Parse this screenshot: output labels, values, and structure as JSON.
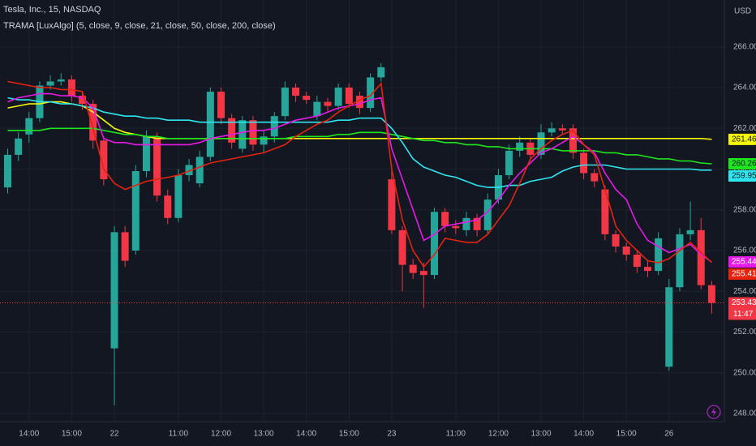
{
  "chart_data": {
    "type": "candlestick",
    "title": "Tesla, Inc., 15, NASDAQ",
    "indicator": "TRAMA [LuxAlgo] (5, close, 9, close, 21, close, 50, close, 200, close)",
    "currency": "USD",
    "countdown": "11:47",
    "up_color": "#26a69a",
    "down_color": "#f23645",
    "grid": true,
    "categories": [
      null,
      null,
      "14:00",
      null,
      null,
      null,
      "15:00",
      null,
      null,
      null,
      "22",
      null,
      null,
      null,
      null,
      null,
      "11:00",
      null,
      null,
      null,
      "12:00",
      null,
      null,
      null,
      "13:00",
      null,
      null,
      null,
      "14:00",
      null,
      null,
      null,
      "15:00",
      null,
      null,
      null,
      "23",
      null,
      null,
      null,
      null,
      null,
      "11:00",
      null,
      null,
      null,
      "12:00",
      null,
      null,
      null,
      "13:00",
      null,
      null,
      null,
      "14:00",
      null,
      null,
      null,
      "15:00",
      null,
      null,
      null,
      "26",
      null,
      null,
      null,
      null
    ],
    "open": [
      259.1,
      260.7,
      261.7,
      262.5,
      264.1,
      264.3,
      264.4,
      263.6,
      263.2,
      261.4,
      251.2,
      256.9,
      256.0,
      259.9,
      261.6,
      258.7,
      257.6,
      259.7,
      259.3,
      260.6,
      263.8,
      262.5,
      261.0,
      262.4,
      261.2,
      261.6,
      262.6,
      264.0,
      263.6,
      262.6,
      263.3,
      263.1,
      264.0,
      263.6,
      263.0,
      264.5,
      259.5,
      257.0,
      255.3,
      255.0,
      254.8,
      257.9,
      257.2,
      257.0,
      257.6,
      257.0,
      258.5,
      259.7,
      260.9,
      261.3,
      260.7,
      261.8,
      262.0,
      262.0,
      260.8,
      259.8,
      259.0,
      256.8,
      256.2,
      255.8,
      255.2,
      255.0,
      250.3,
      254.2,
      256.8,
      257.0,
      254.3
    ],
    "high": [
      261.0,
      261.8,
      262.8,
      264.3,
      264.6,
      264.7,
      264.6,
      263.8,
      263.4,
      261.6,
      257.2,
      257.2,
      260.2,
      261.9,
      261.8,
      259.0,
      260.0,
      260.5,
      260.9,
      264.0,
      264.0,
      262.7,
      262.6,
      262.6,
      261.9,
      262.8,
      264.3,
      264.2,
      263.8,
      263.6,
      263.5,
      264.2,
      264.2,
      263.8,
      264.7,
      265.2,
      260.2,
      257.2,
      255.6,
      255.4,
      258.1,
      258.1,
      257.5,
      257.9,
      257.8,
      258.8,
      260.0,
      261.2,
      261.6,
      261.5,
      262.2,
      262.3,
      262.2,
      262.2,
      261.0,
      260.0,
      259.2,
      257.0,
      256.4,
      256.0,
      255.5,
      256.9,
      254.6,
      257.1,
      258.4,
      257.6,
      254.5
    ],
    "low": [
      258.8,
      260.4,
      261.3,
      262.3,
      263.9,
      264.1,
      263.3,
      262.9,
      261.0,
      259.2,
      248.4,
      255.2,
      255.8,
      259.6,
      258.4,
      257.3,
      257.4,
      259.4,
      259.1,
      260.4,
      262.2,
      261.0,
      260.8,
      260.9,
      260.8,
      261.3,
      262.4,
      263.3,
      263.2,
      262.4,
      262.8,
      262.9,
      263.0,
      262.7,
      262.8,
      264.3,
      256.8,
      254.0,
      254.6,
      253.2,
      254.6,
      256.9,
      256.8,
      256.7,
      256.7,
      256.8,
      258.3,
      259.5,
      260.6,
      260.4,
      260.5,
      261.6,
      261.7,
      260.5,
      259.5,
      259.1,
      256.5,
      255.9,
      255.5,
      254.9,
      254.7,
      254.8,
      250.1,
      254.0,
      256.5,
      254.1,
      252.9
    ],
    "close": [
      260.7,
      261.5,
      262.5,
      264.1,
      264.3,
      264.4,
      263.6,
      263.2,
      261.4,
      259.5,
      256.9,
      255.5,
      259.9,
      261.6,
      258.7,
      257.6,
      259.7,
      260.2,
      260.6,
      263.8,
      262.5,
      261.3,
      262.4,
      261.2,
      261.6,
      262.6,
      264.0,
      263.6,
      263.4,
      263.3,
      263.1,
      264.0,
      263.2,
      263.0,
      264.5,
      265.0,
      257.0,
      255.3,
      254.9,
      254.8,
      257.9,
      257.2,
      257.1,
      257.6,
      257.0,
      258.5,
      259.7,
      260.9,
      261.3,
      260.7,
      261.8,
      262.0,
      261.9,
      260.8,
      259.8,
      259.4,
      256.8,
      256.2,
      255.8,
      255.2,
      255.0,
      256.6,
      254.2,
      256.8,
      257.0,
      254.3,
      253.43
    ],
    "series": [
      {
        "color": "#f5f50a",
        "values": [
          263.0,
          263.1,
          263.2,
          263.2,
          263.3,
          263.3,
          263.2,
          263.1,
          262.8,
          262.4,
          262.0,
          261.8,
          261.7,
          261.6,
          261.5,
          261.5,
          261.5,
          261.5,
          261.5,
          261.5,
          261.5,
          261.5,
          261.5,
          261.5,
          261.5,
          261.5,
          261.5,
          261.5,
          261.5,
          261.5,
          261.5,
          261.5,
          261.5,
          261.5,
          261.5,
          261.5,
          261.5,
          261.5,
          261.5,
          261.5,
          261.5,
          261.5,
          261.5,
          261.5,
          261.5,
          261.5,
          261.5,
          261.5,
          261.5,
          261.5,
          261.5,
          261.5,
          261.5,
          261.5,
          261.5,
          261.5,
          261.5,
          261.5,
          261.5,
          261.5,
          261.5,
          261.5,
          261.5,
          261.5,
          261.5,
          261.5,
          261.46
        ]
      },
      {
        "color": "#1ee61e",
        "values": [
          261.9,
          261.9,
          261.9,
          261.9,
          262.0,
          262.0,
          262.0,
          262.0,
          262.0,
          261.9,
          261.8,
          261.7,
          261.7,
          261.6,
          261.6,
          261.5,
          261.5,
          261.5,
          261.5,
          261.5,
          261.5,
          261.5,
          261.5,
          261.5,
          261.5,
          261.5,
          261.5,
          261.6,
          261.6,
          261.6,
          261.6,
          261.7,
          261.7,
          261.8,
          261.8,
          261.8,
          261.7,
          261.6,
          261.5,
          261.4,
          261.4,
          261.3,
          261.3,
          261.2,
          261.2,
          261.1,
          261.1,
          261.0,
          261.0,
          261.0,
          261.0,
          261.0,
          260.9,
          260.9,
          260.9,
          260.9,
          260.8,
          260.8,
          260.7,
          260.7,
          260.6,
          260.5,
          260.5,
          260.4,
          260.4,
          260.3,
          260.26
        ]
      },
      {
        "color": "#2ee6f0",
        "values": [
          263.5,
          263.4,
          263.4,
          263.3,
          263.3,
          263.2,
          263.2,
          263.1,
          263.0,
          262.8,
          262.7,
          262.6,
          262.6,
          262.5,
          262.5,
          262.4,
          262.4,
          262.4,
          262.3,
          262.3,
          262.3,
          262.3,
          262.3,
          262.3,
          262.3,
          262.3,
          262.3,
          262.3,
          262.3,
          262.3,
          262.3,
          262.4,
          262.4,
          262.5,
          262.5,
          262.5,
          262.0,
          261.3,
          260.5,
          260.1,
          259.9,
          259.7,
          259.6,
          259.4,
          259.2,
          259.1,
          259.1,
          259.2,
          259.2,
          259.4,
          259.5,
          259.6,
          259.9,
          260.1,
          260.2,
          260.2,
          260.2,
          260.1,
          260.0,
          260.0,
          260.0,
          260.0,
          260.0,
          260.0,
          260.0,
          259.95,
          259.95
        ]
      },
      {
        "color": "#e619e6",
        "values": [
          263.3,
          263.5,
          263.6,
          263.7,
          263.7,
          263.6,
          263.6,
          263.5,
          263.0,
          261.5,
          261.3,
          261.3,
          261.2,
          261.2,
          261.2,
          261.2,
          261.2,
          261.2,
          261.3,
          261.5,
          261.6,
          261.7,
          261.8,
          261.9,
          261.9,
          262.0,
          262.2,
          262.4,
          262.5,
          262.6,
          262.8,
          263.0,
          263.1,
          263.2,
          263.4,
          263.5,
          261.0,
          259.5,
          258.0,
          256.5,
          256.8,
          257.2,
          257.3,
          257.4,
          257.5,
          257.9,
          258.5,
          259.2,
          259.8,
          260.3,
          260.8,
          261.0,
          261.3,
          261.6,
          261.2,
          260.8,
          259.8,
          259.0,
          258.5,
          257.3,
          256.5,
          256.2,
          255.9,
          256.1,
          256.3,
          255.8,
          255.44
        ]
      },
      {
        "color": "#e6230f",
        "values": [
          264.3,
          264.2,
          264.1,
          264.0,
          264.0,
          263.9,
          263.9,
          263.8,
          262.0,
          260.0,
          259.3,
          259.0,
          259.2,
          259.4,
          259.5,
          259.6,
          259.7,
          259.9,
          260.1,
          260.3,
          260.4,
          260.5,
          260.6,
          260.7,
          260.8,
          261.0,
          261.2,
          261.6,
          261.9,
          262.2,
          262.4,
          262.8,
          263.1,
          263.4,
          263.6,
          264.2,
          260.0,
          257.5,
          256.0,
          255.2,
          255.8,
          256.6,
          256.5,
          256.4,
          256.4,
          256.8,
          257.5,
          258.2,
          259.3,
          260.5,
          261.0,
          261.4,
          261.7,
          261.9,
          261.2,
          260.7,
          259.0,
          257.2,
          256.5,
          256.0,
          255.5,
          255.4,
          255.6,
          256.0,
          256.4,
          255.9,
          255.41
        ]
      }
    ],
    "ylim": [
      247.6,
      268.3
    ],
    "yticks": [
      {
        "value": 248,
        "label": "248.00"
      },
      {
        "value": 250,
        "label": "250.00"
      },
      {
        "value": 252,
        "label": "252.00"
      },
      {
        "value": 254,
        "label": "254.00"
      },
      {
        "value": 256,
        "label": "256.00"
      },
      {
        "value": 258,
        "label": "258.00"
      },
      {
        "value": 260,
        "label": "260.00"
      },
      {
        "value": 262,
        "label": "262.00"
      },
      {
        "value": 264,
        "label": "264.00"
      },
      {
        "value": 266,
        "label": "266.00"
      }
    ]
  }
}
